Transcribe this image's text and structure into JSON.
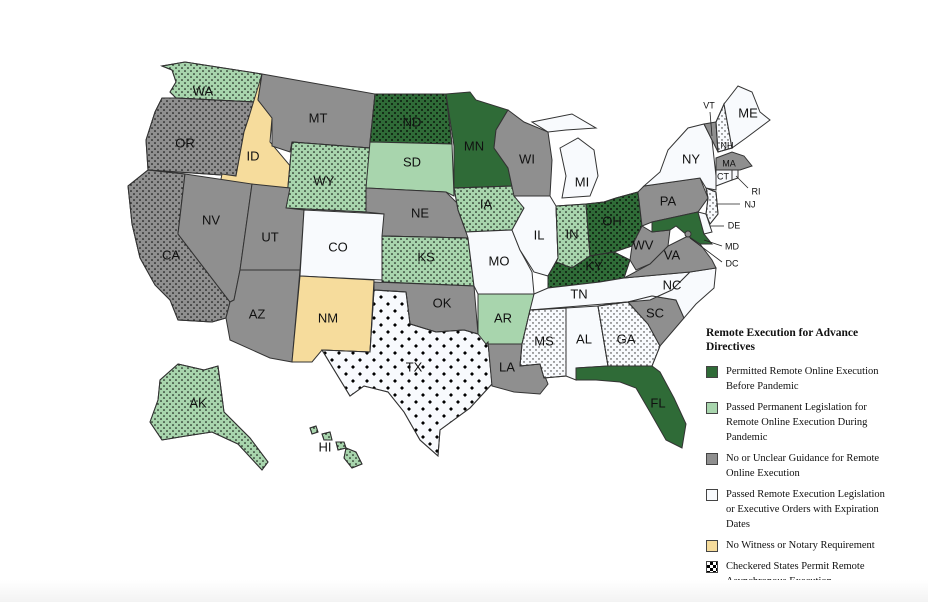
{
  "legend": {
    "title": "Remote Execution for Advance Directives",
    "items": [
      {
        "label": "Permitted Remote Online Execution Before Pandemic",
        "color": "#2f6b37"
      },
      {
        "label": "Passed Permanent Legislation for Remote Online Execution During Pandemic",
        "color": "#a8d5ad"
      },
      {
        "label": "No or Unclear Guidance for Remote Online Execution",
        "color": "#8f8f8f"
      },
      {
        "label": "Passed Remote Execution Legislation or Executive Orders with Expiration Dates",
        "color": "#f8fafd"
      },
      {
        "label": "No Witness or Notary Requirement",
        "color": "#f6dc9c"
      },
      {
        "label": "Checkered States Permit Remote Asynchronous Execution",
        "color": "#ffffff"
      }
    ]
  },
  "states": {
    "WA": {
      "label": "WA",
      "category": "green_light",
      "checkered": true
    },
    "OR": {
      "label": "OR",
      "category": "gray",
      "checkered": true
    },
    "CA": {
      "label": "CA",
      "category": "gray",
      "checkered": true
    },
    "ID": {
      "label": "ID",
      "category": "yellow",
      "checkered": false
    },
    "NV": {
      "label": "NV",
      "category": "gray",
      "checkered": false
    },
    "MT": {
      "label": "MT",
      "category": "gray",
      "checkered": false
    },
    "WY": {
      "label": "WY",
      "category": "green_light",
      "checkered": true
    },
    "UT": {
      "label": "UT",
      "category": "gray",
      "checkered": false
    },
    "AZ": {
      "label": "AZ",
      "category": "gray",
      "checkered": false
    },
    "CO": {
      "label": "CO",
      "category": "white",
      "checkered": false
    },
    "NM": {
      "label": "NM",
      "category": "yellow",
      "checkered": false
    },
    "ND": {
      "label": "ND",
      "category": "green_dark",
      "checkered": true
    },
    "SD": {
      "label": "SD",
      "category": "green_light",
      "checkered": false
    },
    "NE": {
      "label": "NE",
      "category": "gray",
      "checkered": false
    },
    "KS": {
      "label": "KS",
      "category": "green_light",
      "checkered": true
    },
    "OK": {
      "label": "OK",
      "category": "gray",
      "checkered": false
    },
    "TX": {
      "label": "TX",
      "category": "white",
      "checkered": true
    },
    "MN": {
      "label": "MN",
      "category": "green_dark",
      "checkered": false
    },
    "IA": {
      "label": "IA",
      "category": "green_light",
      "checkered": true
    },
    "MO": {
      "label": "MO",
      "category": "white",
      "checkered": false
    },
    "AR": {
      "label": "AR",
      "category": "green_light",
      "checkered": false
    },
    "LA": {
      "label": "LA",
      "category": "gray",
      "checkered": false
    },
    "WI": {
      "label": "WI",
      "category": "gray",
      "checkered": false
    },
    "IL": {
      "label": "IL",
      "category": "white",
      "checkered": false
    },
    "MI": {
      "label": "MI",
      "category": "white",
      "checkered": false
    },
    "IN": {
      "label": "IN",
      "category": "green_light",
      "checkered": true
    },
    "OH": {
      "label": "OH",
      "category": "green_dark",
      "checkered": true
    },
    "KY": {
      "label": "KY",
      "category": "green_dark",
      "checkered": true
    },
    "TN": {
      "label": "TN",
      "category": "white",
      "checkered": false
    },
    "MS": {
      "label": "MS",
      "category": "white",
      "checkered": true
    },
    "AL": {
      "label": "AL",
      "category": "white",
      "checkered": false
    },
    "GA": {
      "label": "GA",
      "category": "white",
      "checkered": true
    },
    "FL": {
      "label": "FL",
      "category": "green_dark",
      "checkered": false
    },
    "SC": {
      "label": "SC",
      "category": "gray",
      "checkered": false
    },
    "NC": {
      "label": "NC",
      "category": "white",
      "checkered": false
    },
    "VA": {
      "label": "VA",
      "category": "gray",
      "checkered": false
    },
    "WV": {
      "label": "WV",
      "category": "gray",
      "checkered": false
    },
    "PA": {
      "label": "PA",
      "category": "gray",
      "checkered": false
    },
    "NY": {
      "label": "NY",
      "category": "white",
      "checkered": false
    },
    "MD": {
      "label": "MD",
      "category": "green_dark",
      "checkered": false
    },
    "DE": {
      "label": "DE",
      "category": "white",
      "checkered": false
    },
    "NJ": {
      "label": "NJ",
      "category": "white",
      "checkered": true
    },
    "DC": {
      "label": "DC",
      "category": "gray",
      "checkered": false
    },
    "CT": {
      "label": "CT",
      "category": "white",
      "checkered": false
    },
    "RI": {
      "label": "RI",
      "category": "white",
      "checkered": false
    },
    "MA": {
      "label": "MA",
      "category": "gray",
      "checkered": false
    },
    "VT": {
      "label": "VT",
      "category": "gray",
      "checkered": false
    },
    "NH": {
      "label": "NH",
      "category": "white",
      "checkered": true
    },
    "ME": {
      "label": "ME",
      "category": "white",
      "checkered": false
    },
    "AK": {
      "label": "AK",
      "category": "green_light",
      "checkered": true
    },
    "HI": {
      "label": "HI",
      "category": "green_light",
      "checkered": true
    }
  }
}
